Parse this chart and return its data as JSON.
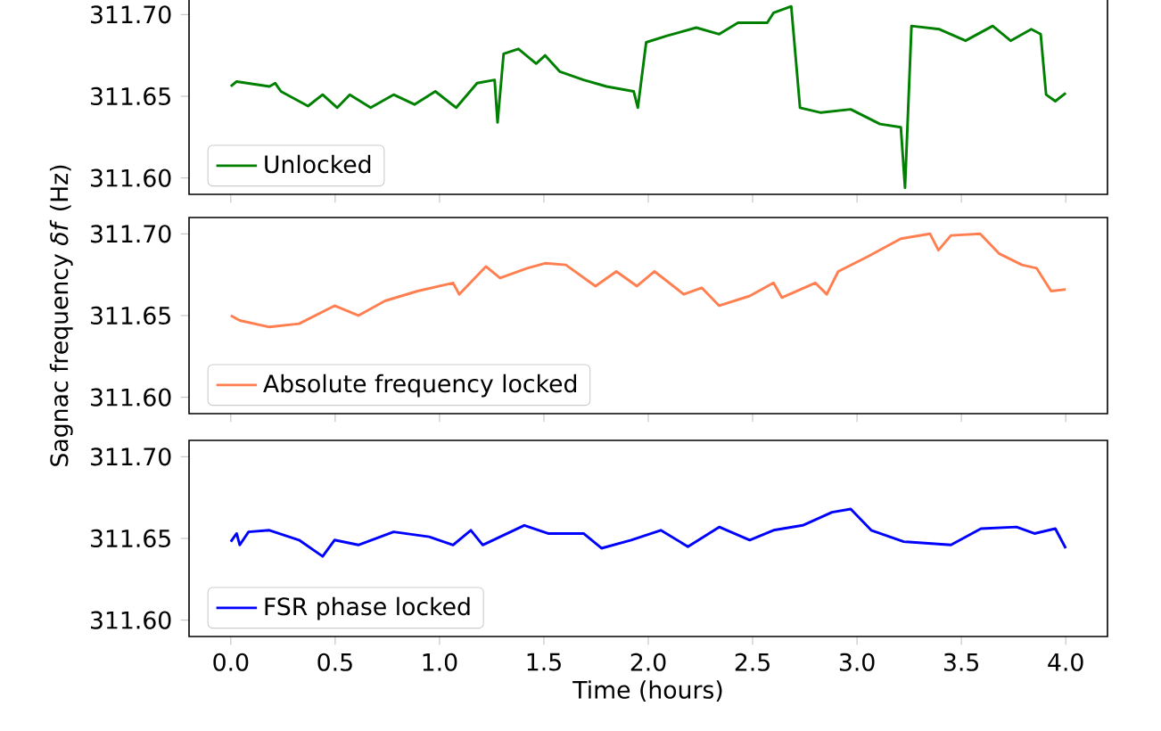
{
  "chart_data": [
    {
      "type": "line",
      "xlim": [
        -0.2,
        4.2
      ],
      "ylim": [
        311.59,
        311.71
      ],
      "tick_labels": "y",
      "legend": "bottom left",
      "xticks": [
        {
          "value": 0,
          "label": null
        },
        {
          "value": 0.5,
          "label": null
        },
        {
          "value": 1,
          "label": null
        },
        {
          "value": 1.5,
          "label": null
        },
        {
          "value": 2,
          "label": null
        },
        {
          "value": 2.5,
          "label": null
        },
        {
          "value": 3,
          "label": null
        },
        {
          "value": 3.5,
          "label": null
        },
        {
          "value": 4,
          "label": null
        }
      ],
      "yticks": [
        {
          "value": 311.6,
          "label": "311.60"
        },
        {
          "value": 311.65,
          "label": "311.65"
        },
        {
          "value": 311.7,
          "label": "311.70"
        }
      ],
      "series": [
        {
          "name": "Unlocked",
          "color": "#008000",
          "x": [
            0,
            0.028,
            0.185,
            0.213,
            0.24,
            0.37,
            0.44,
            0.51,
            0.57,
            0.67,
            0.78,
            0.88,
            0.98,
            1.08,
            1.18,
            1.264,
            1.278,
            1.307,
            1.378,
            1.463,
            1.506,
            1.577,
            1.69,
            1.8,
            1.93,
            1.95,
            1.99,
            2.09,
            2.23,
            2.34,
            2.43,
            2.57,
            2.6,
            2.685,
            2.727,
            2.827,
            2.97,
            3.11,
            3.21,
            3.23,
            3.261,
            3.395,
            3.52,
            3.65,
            3.736,
            3.835,
            3.88,
            3.906,
            3.95,
            4.0
          ],
          "values": [
            311.656,
            311.659,
            311.656,
            311.658,
            311.653,
            311.644,
            311.651,
            311.643,
            311.651,
            311.643,
            311.651,
            311.645,
            311.653,
            311.643,
            311.658,
            311.66,
            311.634,
            311.676,
            311.679,
            311.67,
            311.675,
            311.665,
            311.66,
            311.656,
            311.653,
            311.643,
            311.683,
            311.687,
            311.692,
            311.688,
            311.695,
            311.695,
            311.701,
            311.705,
            311.643,
            311.64,
            311.642,
            311.633,
            311.631,
            311.594,
            311.693,
            311.691,
            311.684,
            311.693,
            311.684,
            311.691,
            311.688,
            311.651,
            311.647,
            311.652
          ]
        }
      ]
    },
    {
      "type": "line",
      "xlim": [
        -0.2,
        4.2
      ],
      "ylim": [
        311.59,
        311.71
      ],
      "tick_labels": "y",
      "legend": "bottom left",
      "ylabel": "Sagnac frequency *δf* (Hz)",
      "xticks": [
        {
          "value": 0,
          "label": null
        },
        {
          "value": 0.5,
          "label": null
        },
        {
          "value": 1,
          "label": null
        },
        {
          "value": 1.5,
          "label": null
        },
        {
          "value": 2,
          "label": null
        },
        {
          "value": 2.5,
          "label": null
        },
        {
          "value": 3,
          "label": null
        },
        {
          "value": 3.5,
          "label": null
        },
        {
          "value": 4,
          "label": null
        }
      ],
      "yticks": [
        {
          "value": 311.6,
          "label": "311.60"
        },
        {
          "value": 311.65,
          "label": "311.65"
        },
        {
          "value": 311.7,
          "label": "311.70"
        }
      ],
      "series": [
        {
          "name": "Absolute frequency locked",
          "color": "#ff7f50",
          "x": [
            0,
            0.043,
            0.185,
            0.327,
            0.497,
            0.611,
            0.739,
            0.895,
            1.065,
            1.094,
            1.222,
            1.29,
            1.42,
            1.506,
            1.605,
            1.747,
            1.847,
            1.946,
            2.03,
            2.17,
            2.256,
            2.34,
            2.486,
            2.6,
            2.64,
            2.8,
            2.855,
            2.91,
            3.05,
            3.21,
            3.35,
            3.39,
            3.45,
            3.59,
            3.68,
            3.79,
            3.86,
            3.93,
            4.0
          ],
          "values": [
            311.65,
            311.647,
            311.643,
            311.645,
            311.656,
            311.65,
            311.659,
            311.665,
            311.67,
            311.663,
            311.68,
            311.673,
            311.679,
            311.682,
            311.681,
            311.668,
            311.677,
            311.668,
            311.677,
            311.663,
            311.667,
            311.656,
            311.662,
            311.67,
            311.661,
            311.67,
            311.663,
            311.677,
            311.686,
            311.697,
            311.7,
            311.69,
            311.699,
            311.7,
            311.688,
            311.681,
            311.679,
            311.665,
            311.666
          ]
        }
      ]
    },
    {
      "type": "line",
      "xlim": [
        -0.2,
        4.2
      ],
      "ylim": [
        311.59,
        311.71
      ],
      "legend": "bottom left",
      "xlabel": "Time (hours)",
      "xticks": [
        {
          "value": 0,
          "label": "0.0"
        },
        {
          "value": 0.5,
          "label": "0.5"
        },
        {
          "value": 1,
          "label": "1.0"
        },
        {
          "value": 1.5,
          "label": "1.5"
        },
        {
          "value": 2,
          "label": "2.0"
        },
        {
          "value": 2.5,
          "label": "2.5"
        },
        {
          "value": 3,
          "label": "3.0"
        },
        {
          "value": 3.5,
          "label": "3.5"
        },
        {
          "value": 4,
          "label": "4.0"
        }
      ],
      "yticks": [
        {
          "value": 311.6,
          "label": "311.60"
        },
        {
          "value": 311.65,
          "label": "311.65"
        },
        {
          "value": 311.7,
          "label": "311.70"
        }
      ],
      "series": [
        {
          "name": "FSR phase locked",
          "color": "#0000ff",
          "x": [
            0,
            0.028,
            0.043,
            0.085,
            0.185,
            0.327,
            0.44,
            0.497,
            0.611,
            0.78,
            0.95,
            1.065,
            1.15,
            1.207,
            1.406,
            1.52,
            1.69,
            1.776,
            1.918,
            2.06,
            2.19,
            2.34,
            2.486,
            2.6,
            2.74,
            2.88,
            2.97,
            3.068,
            3.224,
            3.45,
            3.594,
            3.764,
            3.85,
            3.95,
            4.0
          ],
          "values": [
            311.648,
            311.653,
            311.646,
            311.654,
            311.655,
            311.649,
            311.639,
            311.649,
            311.646,
            311.654,
            311.651,
            311.646,
            311.655,
            311.646,
            311.658,
            311.653,
            311.653,
            311.644,
            311.649,
            311.655,
            311.645,
            311.657,
            311.649,
            311.655,
            311.658,
            311.666,
            311.668,
            311.655,
            311.648,
            311.646,
            311.656,
            311.657,
            311.653,
            311.656,
            311.644
          ]
        }
      ]
    }
  ]
}
